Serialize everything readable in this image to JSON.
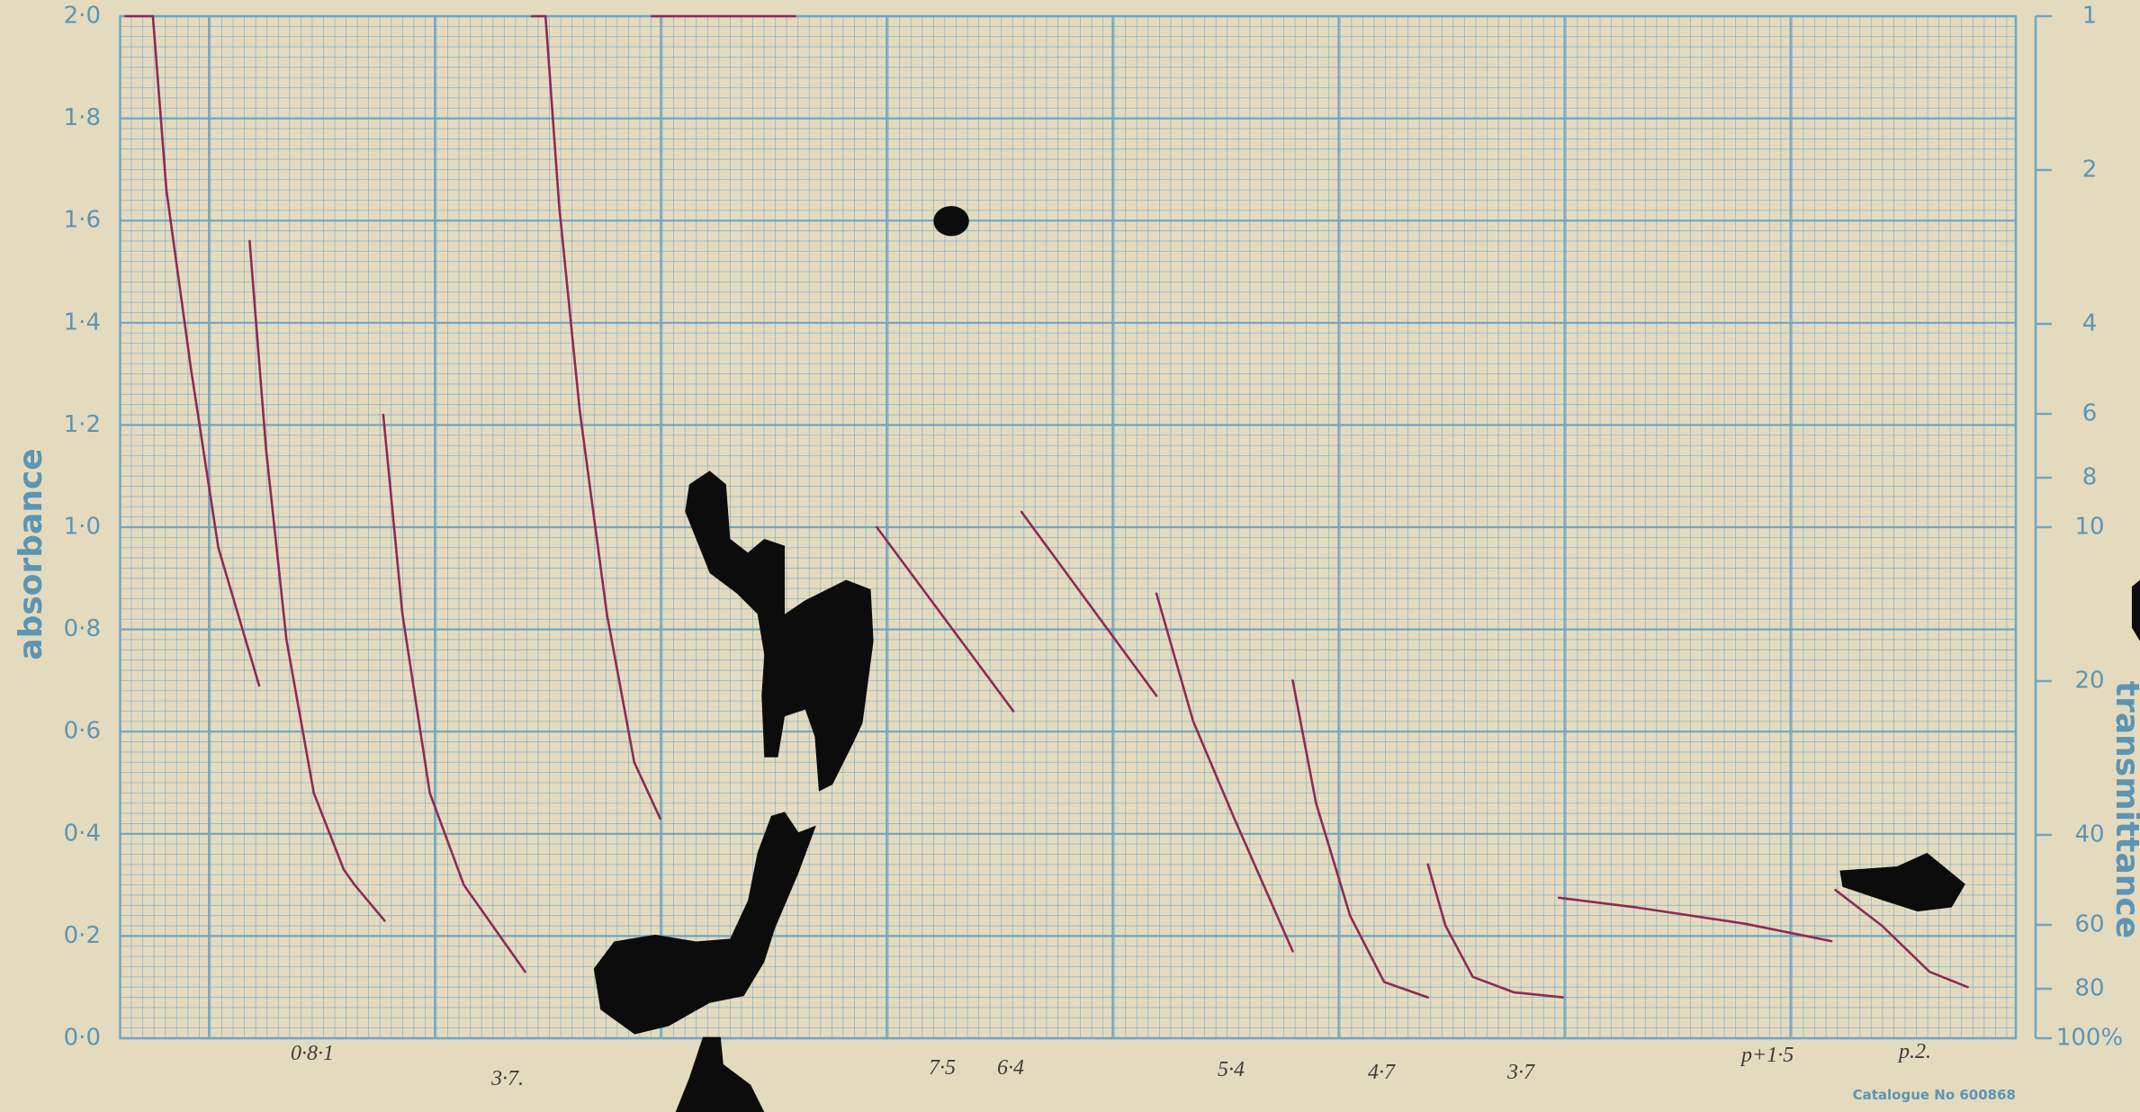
{
  "chart_data": {
    "type": "line",
    "ylabel": "absorbance",
    "y2label": "transmittance",
    "footer": "Catalogue No 600868",
    "annotations": [
      "0·8·1",
      "3·7.",
      "7·5",
      "6·4",
      "5·4",
      "4·7",
      "3·7",
      "p+1·5",
      "p.2."
    ],
    "xlim": [
      0,
      8.4
    ],
    "ylim": [
      0,
      2
    ],
    "yticks": [
      {
        "value": 0,
        "label": "0·0"
      },
      {
        "value": 0.2,
        "label": "0·2"
      },
      {
        "value": 0.4,
        "label": "0·4"
      },
      {
        "value": 0.6,
        "label": "0·6"
      },
      {
        "value": 0.8,
        "label": "0·8"
      },
      {
        "value": 1,
        "label": "1·0"
      },
      {
        "value": 1.2,
        "label": "1·2"
      },
      {
        "value": 1.4,
        "label": "1·4"
      },
      {
        "value": 1.6,
        "label": "1·6"
      },
      {
        "value": 1.8,
        "label": "1·8"
      },
      {
        "value": 2,
        "label": "2·0"
      }
    ],
    "y2log": true,
    "y2lim": [
      100,
      1
    ],
    "y2ticks": [
      1,
      2,
      4,
      6,
      8,
      10,
      20,
      40,
      60,
      80,
      {
        "value": 100,
        "label": "100%"
      }
    ],
    "grid": true,
    "series": [
      {
        "color": "#8e2a55",
        "x": [
          0.024,
          0.145,
          0.205,
          0.314,
          0.435,
          0.616
        ],
        "values": [
          2.0,
          2.0,
          1.66,
          1.31,
          0.96,
          0.69
        ]
      },
      {
        "color": "#8e2a55",
        "x": [
          0.574,
          0.647,
          0.737,
          0.858,
          0.991,
          1.039,
          1.172
        ],
        "values": [
          1.56,
          1.15,
          0.78,
          0.48,
          0.33,
          0.3,
          0.23
        ]
      },
      {
        "color": "#8e2a55",
        "x": [
          1.166,
          1.251,
          1.372,
          1.523,
          1.795
        ],
        "values": [
          1.22,
          0.83,
          0.48,
          0.3,
          0.13
        ]
      },
      {
        "color": "#8e2a55",
        "x": [
          1.825,
          1.885,
          1.945,
          2.036,
          2.157,
          2.278,
          2.393
        ],
        "values": [
          2.0,
          2.0,
          1.63,
          1.23,
          0.83,
          0.54,
          0.43
        ]
      },
      {
        "color": "#8e2a55",
        "x": [
          2.356,
          2.991
        ],
        "values": [
          2.0,
          2.0
        ]
      },
      {
        "color": "#8e2a55",
        "x": [
          3.353,
          3.958
        ],
        "values": [
          1.0,
          0.64
        ]
      },
      {
        "color": "#8e2a55",
        "x": [
          3.994,
          4.592
        ],
        "values": [
          1.03,
          0.67
        ]
      },
      {
        "color": "#8e2a55",
        "x": [
          4.592,
          4.755,
          4.937,
          5.196
        ],
        "values": [
          0.87,
          0.62,
          0.43,
          0.17
        ]
      },
      {
        "color": "#8e2a55",
        "x": [
          5.196,
          5.299,
          5.45,
          5.601,
          5.795
        ],
        "values": [
          0.7,
          0.46,
          0.24,
          0.11,
          0.08
        ]
      },
      {
        "color": "#8e2a55",
        "x": [
          5.795,
          5.873,
          5.994,
          6.175,
          6.393
        ],
        "values": [
          0.34,
          0.22,
          0.12,
          0.09,
          0.08
        ]
      },
      {
        "color": "#8e2a55",
        "x": [
          6.375,
          6.719,
          7.202,
          7.583
        ],
        "values": [
          0.275,
          0.256,
          0.224,
          0.19
        ]
      },
      {
        "color": "#8e2a55",
        "x": [
          7.601,
          7.807,
          8.018,
          8.187
        ],
        "values": [
          0.29,
          0.22,
          0.13,
          0.1
        ]
      }
    ]
  }
}
